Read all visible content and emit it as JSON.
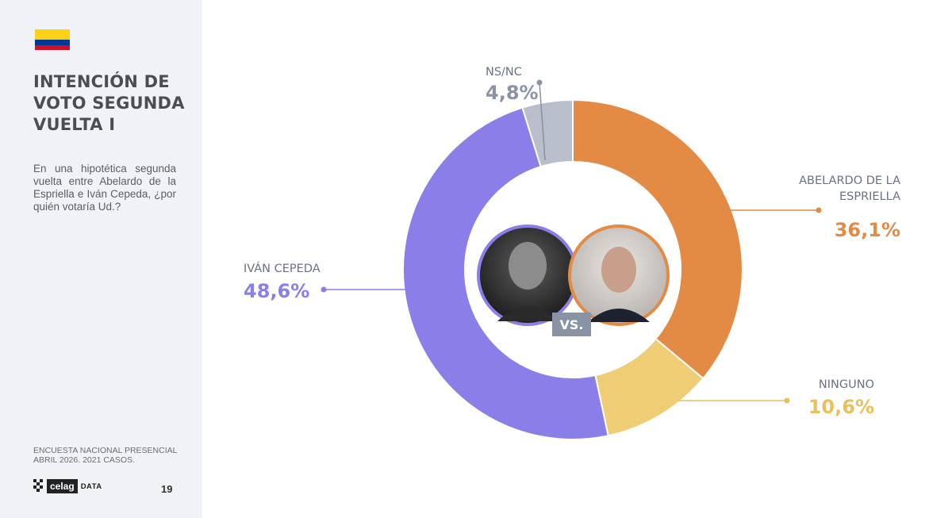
{
  "slide": {
    "title": "INTENCIÓN DE VOTO SEGUNDA VUELTA I",
    "question": "En una hipotética segunda vuelta entre Abelardo de la Espriella e Iván Cepeda, ¿por quién votaría Ud.?",
    "source_line1": "ENCUESTA NACIONAL PRESENCIAL",
    "source_line2": "ABRIL 2026. 2021 CASOS.",
    "logo_word": "celag",
    "logo_suffix": "DATA",
    "page_number": "19",
    "vs_label": "VS.",
    "flag_colors": [
      "#fcd116",
      "#003893",
      "#ce1126"
    ]
  },
  "chart_data": {
    "type": "pie",
    "variant": "donut",
    "slices": [
      {
        "label": "ABELARDO DE LA ESPRIELLA",
        "label_lines": [
          "ABELARDO DE LA",
          "ESPRIELLA"
        ],
        "value": 36.1,
        "value_label": "36,1%",
        "color": "#e38b45"
      },
      {
        "label": "NINGUNO",
        "label_lines": [
          "NINGUNO"
        ],
        "value": 10.6,
        "value_label": "10,6%",
        "color": "#efcd75"
      },
      {
        "label": "IVÁN CEPEDA",
        "label_lines": [
          "IVÁN CEPEDA"
        ],
        "value": 48.6,
        "value_label": "48,6%",
        "color": "#8a7fe9"
      },
      {
        "label": "NS/NC",
        "label_lines": [
          "NS/NC"
        ],
        "value": 4.8,
        "value_label": "4,8%",
        "color": "#b9bfca"
      }
    ],
    "value_colors": {
      "ABELARDO DE LA ESPRIELLA": "#e38b45",
      "NINGUNO": "#e8c060",
      "IVÁN CEPEDA": "#8a7fe9",
      "NS/NC": "#8a93a4"
    }
  }
}
